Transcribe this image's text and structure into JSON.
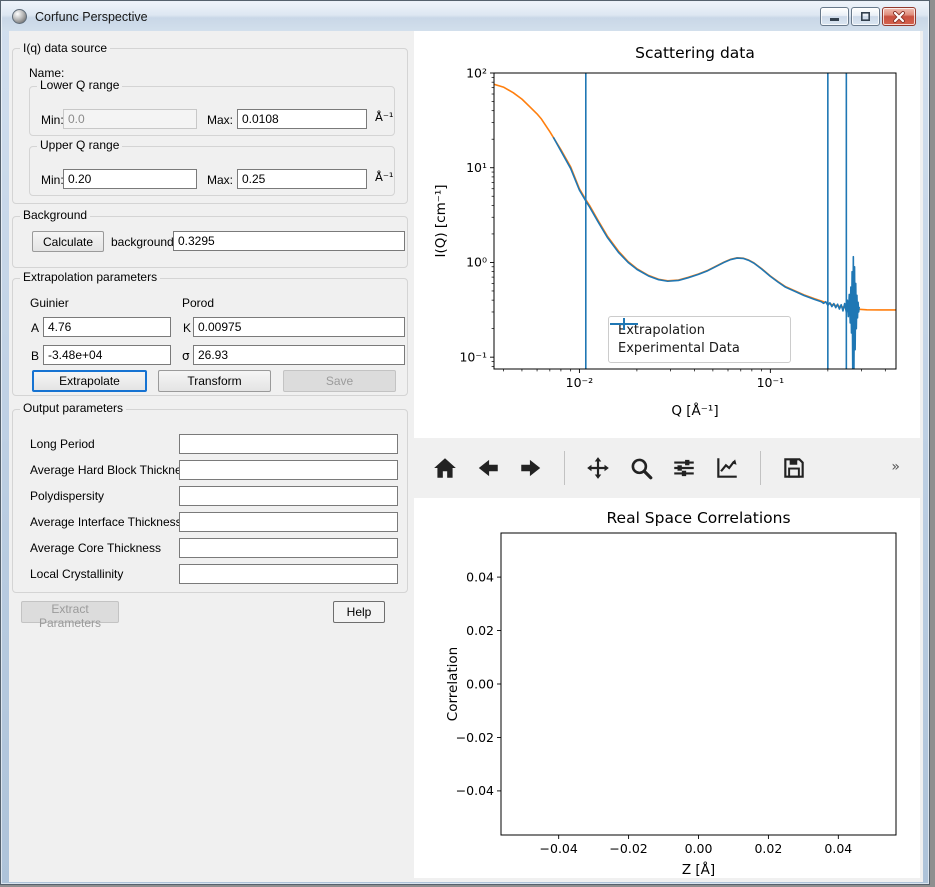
{
  "window": {
    "title": "Corfunc Perspective"
  },
  "form": {
    "data_source": {
      "title": "I(q) data source",
      "name_label": "Name:",
      "name_value": "",
      "lower": {
        "title": "Lower Q range",
        "min_label": "Min:",
        "min_value": "0.0",
        "max_label": "Max:",
        "max_value": "0.0108",
        "unit": "Å⁻¹"
      },
      "upper": {
        "title": "Upper Q range",
        "min_label": "Min:",
        "min_value": "0.20",
        "max_label": "Max:",
        "max_value": "0.25",
        "unit": "Å⁻¹"
      }
    },
    "background": {
      "title": "Background",
      "calculate_label": "Calculate",
      "field_label": "background",
      "value": "0.3295"
    },
    "extrapolation": {
      "title": "Extrapolation parameters",
      "guinier_label": "Guinier",
      "porod_label": "Porod",
      "a_label": "A",
      "a_value": "4.76",
      "b_label": "B",
      "b_value": "-3.48e+04",
      "k_label": "K",
      "k_value": "0.00975",
      "sigma_label": "σ",
      "sigma_value": "26.93",
      "extrapolate_label": "Extrapolate",
      "transform_label": "Transform",
      "save_label": "Save"
    },
    "output": {
      "title": "Output parameters",
      "rows": [
        {
          "label": "Long Period",
          "value": ""
        },
        {
          "label": "Average Hard Block Thickness",
          "value": ""
        },
        {
          "label": "Polydispersity",
          "value": ""
        },
        {
          "label": "Average Interface Thickness",
          "value": ""
        },
        {
          "label": "Average Core Thickness",
          "value": ""
        },
        {
          "label": "Local Crystallinity",
          "value": ""
        }
      ]
    },
    "extract_label": "Extract Parameters",
    "help_label": "Help"
  },
  "toolbar": {
    "icons": [
      "home",
      "back",
      "forward",
      "pan",
      "zoom",
      "configure-subplots",
      "edit-axes",
      "save"
    ],
    "overflow_chevron": "»"
  },
  "chart_data": [
    {
      "type": "line",
      "title": "Scattering data",
      "xlabel": "Q [Å⁻¹]",
      "ylabel": "I(Q) [cm⁻¹]",
      "xscale": "log",
      "yscale": "log",
      "xlim": [
        0.00357,
        0.455
      ],
      "ylim": [
        0.075,
        100
      ],
      "grid": false,
      "x_ticks": [
        {
          "v": 0.01,
          "label": "10⁻²"
        },
        {
          "v": 0.1,
          "label": "10⁻¹"
        }
      ],
      "y_ticks": [
        {
          "v": 100,
          "label": "10²"
        },
        {
          "v": 10,
          "label": "10¹"
        },
        {
          "v": 1,
          "label": "10⁰"
        },
        {
          "v": 0.1,
          "label": "10⁻¹"
        }
      ],
      "vlines": {
        "color": "#1f77b4",
        "values": [
          0.0108,
          0.2,
          0.25
        ]
      },
      "legend": {
        "position": "lower-center",
        "entries": [
          {
            "label": "Extrapolation",
            "color": "#ff7f0e",
            "marker": "line"
          },
          {
            "label": "Experimental Data",
            "color": "#1f77b4",
            "marker": "errorbar"
          }
        ]
      },
      "series": [
        {
          "name": "Extrapolation",
          "color": "#ff7f0e",
          "points": [
            [
              0.00357,
              76
            ],
            [
              0.004,
              71
            ],
            [
              0.0045,
              62
            ],
            [
              0.005,
              53
            ],
            [
              0.0055,
              44
            ],
            [
              0.006,
              37
            ],
            [
              0.0063,
              33
            ],
            [
              0.007,
              24
            ],
            [
              0.008,
              15.5
            ],
            [
              0.009,
              10.2
            ],
            [
              0.01,
              6.0
            ],
            [
              0.0108,
              4.6
            ],
            [
              0.0113,
              4.0
            ],
            [
              0.0125,
              2.8
            ],
            [
              0.014,
              1.9
            ],
            [
              0.016,
              1.32
            ],
            [
              0.018,
              1.02
            ],
            [
              0.02,
              0.86
            ],
            [
              0.023,
              0.73
            ],
            [
              0.026,
              0.665
            ],
            [
              0.029,
              0.64
            ],
            [
              0.033,
              0.652
            ],
            [
              0.037,
              0.695
            ],
            [
              0.042,
              0.755
            ],
            [
              0.047,
              0.825
            ],
            [
              0.052,
              0.915
            ],
            [
              0.057,
              1.005
            ],
            [
              0.062,
              1.08
            ],
            [
              0.067,
              1.12
            ],
            [
              0.072,
              1.11
            ],
            [
              0.077,
              1.06
            ],
            [
              0.082,
              0.99
            ],
            [
              0.09,
              0.86
            ],
            [
              0.1,
              0.72
            ],
            [
              0.11,
              0.625
            ],
            [
              0.12,
              0.555
            ],
            [
              0.135,
              0.5
            ],
            [
              0.15,
              0.455
            ],
            [
              0.17,
              0.415
            ],
            [
              0.19,
              0.385
            ],
            [
              0.21,
              0.36
            ],
            [
              0.23,
              0.345
            ],
            [
              0.25,
              0.332
            ],
            [
              0.28,
              0.322
            ],
            [
              0.32,
              0.316
            ],
            [
              0.38,
              0.315
            ],
            [
              0.455,
              0.315
            ]
          ]
        },
        {
          "name": "Experimental Data",
          "color": "#1f77b4",
          "points": [
            [
              0.0073,
              21
            ],
            [
              0.008,
              15.0
            ],
            [
              0.009,
              9.8
            ],
            [
              0.01,
              5.8
            ],
            [
              0.0108,
              4.45
            ],
            [
              0.0113,
              3.85
            ],
            [
              0.0125,
              2.7
            ],
            [
              0.014,
              1.84
            ],
            [
              0.016,
              1.28
            ],
            [
              0.018,
              1.0
            ],
            [
              0.02,
              0.845
            ],
            [
              0.023,
              0.72
            ],
            [
              0.026,
              0.657
            ],
            [
              0.029,
              0.633
            ],
            [
              0.033,
              0.645
            ],
            [
              0.037,
              0.688
            ],
            [
              0.042,
              0.748
            ],
            [
              0.047,
              0.818
            ],
            [
              0.052,
              0.908
            ],
            [
              0.057,
              0.998
            ],
            [
              0.062,
              1.073
            ],
            [
              0.067,
              1.113
            ],
            [
              0.072,
              1.103
            ],
            [
              0.077,
              1.053
            ],
            [
              0.082,
              0.983
            ],
            [
              0.09,
              0.853
            ],
            [
              0.1,
              0.713
            ],
            [
              0.11,
              0.618
            ],
            [
              0.12,
              0.548
            ],
            [
              0.135,
              0.493
            ],
            [
              0.15,
              0.448
            ],
            [
              0.17,
              0.408
            ],
            [
              0.185,
              0.385
            ],
            [
              0.19,
              0.37
            ],
            [
              0.195,
              0.385
            ],
            [
              0.2,
              0.352
            ],
            [
              0.205,
              0.375
            ],
            [
              0.21,
              0.342
            ],
            [
              0.215,
              0.368
            ],
            [
              0.22,
              0.333
            ],
            [
              0.225,
              0.362
            ],
            [
              0.23,
              0.322
            ],
            [
              0.235,
              0.358
            ],
            [
              0.24,
              0.308
            ],
            [
              0.245,
              0.368
            ],
            [
              0.25,
              0.298
            ],
            [
              0.253,
              0.4
            ],
            [
              0.256,
              0.268
            ],
            [
              0.259,
              0.46
            ],
            [
              0.262,
              0.23
            ],
            [
              0.264,
              0.55
            ],
            [
              0.266,
              0.18
            ],
            [
              0.268,
              0.8
            ],
            [
              0.27,
              0.076
            ],
            [
              0.272,
              1.15
            ],
            [
              0.274,
              0.076
            ],
            [
              0.276,
              0.9
            ],
            [
              0.278,
              0.12
            ],
            [
              0.28,
              0.6
            ],
            [
              0.282,
              0.2
            ],
            [
              0.284,
              0.45
            ],
            [
              0.286,
              0.26
            ],
            [
              0.288,
              0.38
            ],
            [
              0.29,
              0.3
            ],
            [
              0.292,
              0.34
            ]
          ]
        }
      ]
    },
    {
      "type": "line",
      "title": "Real Space Correlations",
      "xlabel": "Z [Å]",
      "ylabel": "Correlation",
      "xscale": "linear",
      "yscale": "linear",
      "xlim": [
        -0.0565,
        0.0565
      ],
      "ylim": [
        -0.0565,
        0.0565
      ],
      "grid": false,
      "x_ticks": [
        {
          "v": -0.04,
          "label": "−0.04"
        },
        {
          "v": -0.02,
          "label": "−0.02"
        },
        {
          "v": 0.0,
          "label": "0.00"
        },
        {
          "v": 0.02,
          "label": "0.02"
        },
        {
          "v": 0.04,
          "label": "0.04"
        }
      ],
      "y_ticks": [
        {
          "v": 0.04,
          "label": "0.04"
        },
        {
          "v": 0.02,
          "label": "0.02"
        },
        {
          "v": 0.0,
          "label": "0.00"
        },
        {
          "v": -0.02,
          "label": "−0.02"
        },
        {
          "v": -0.04,
          "label": "−0.04"
        }
      ],
      "series": []
    }
  ]
}
